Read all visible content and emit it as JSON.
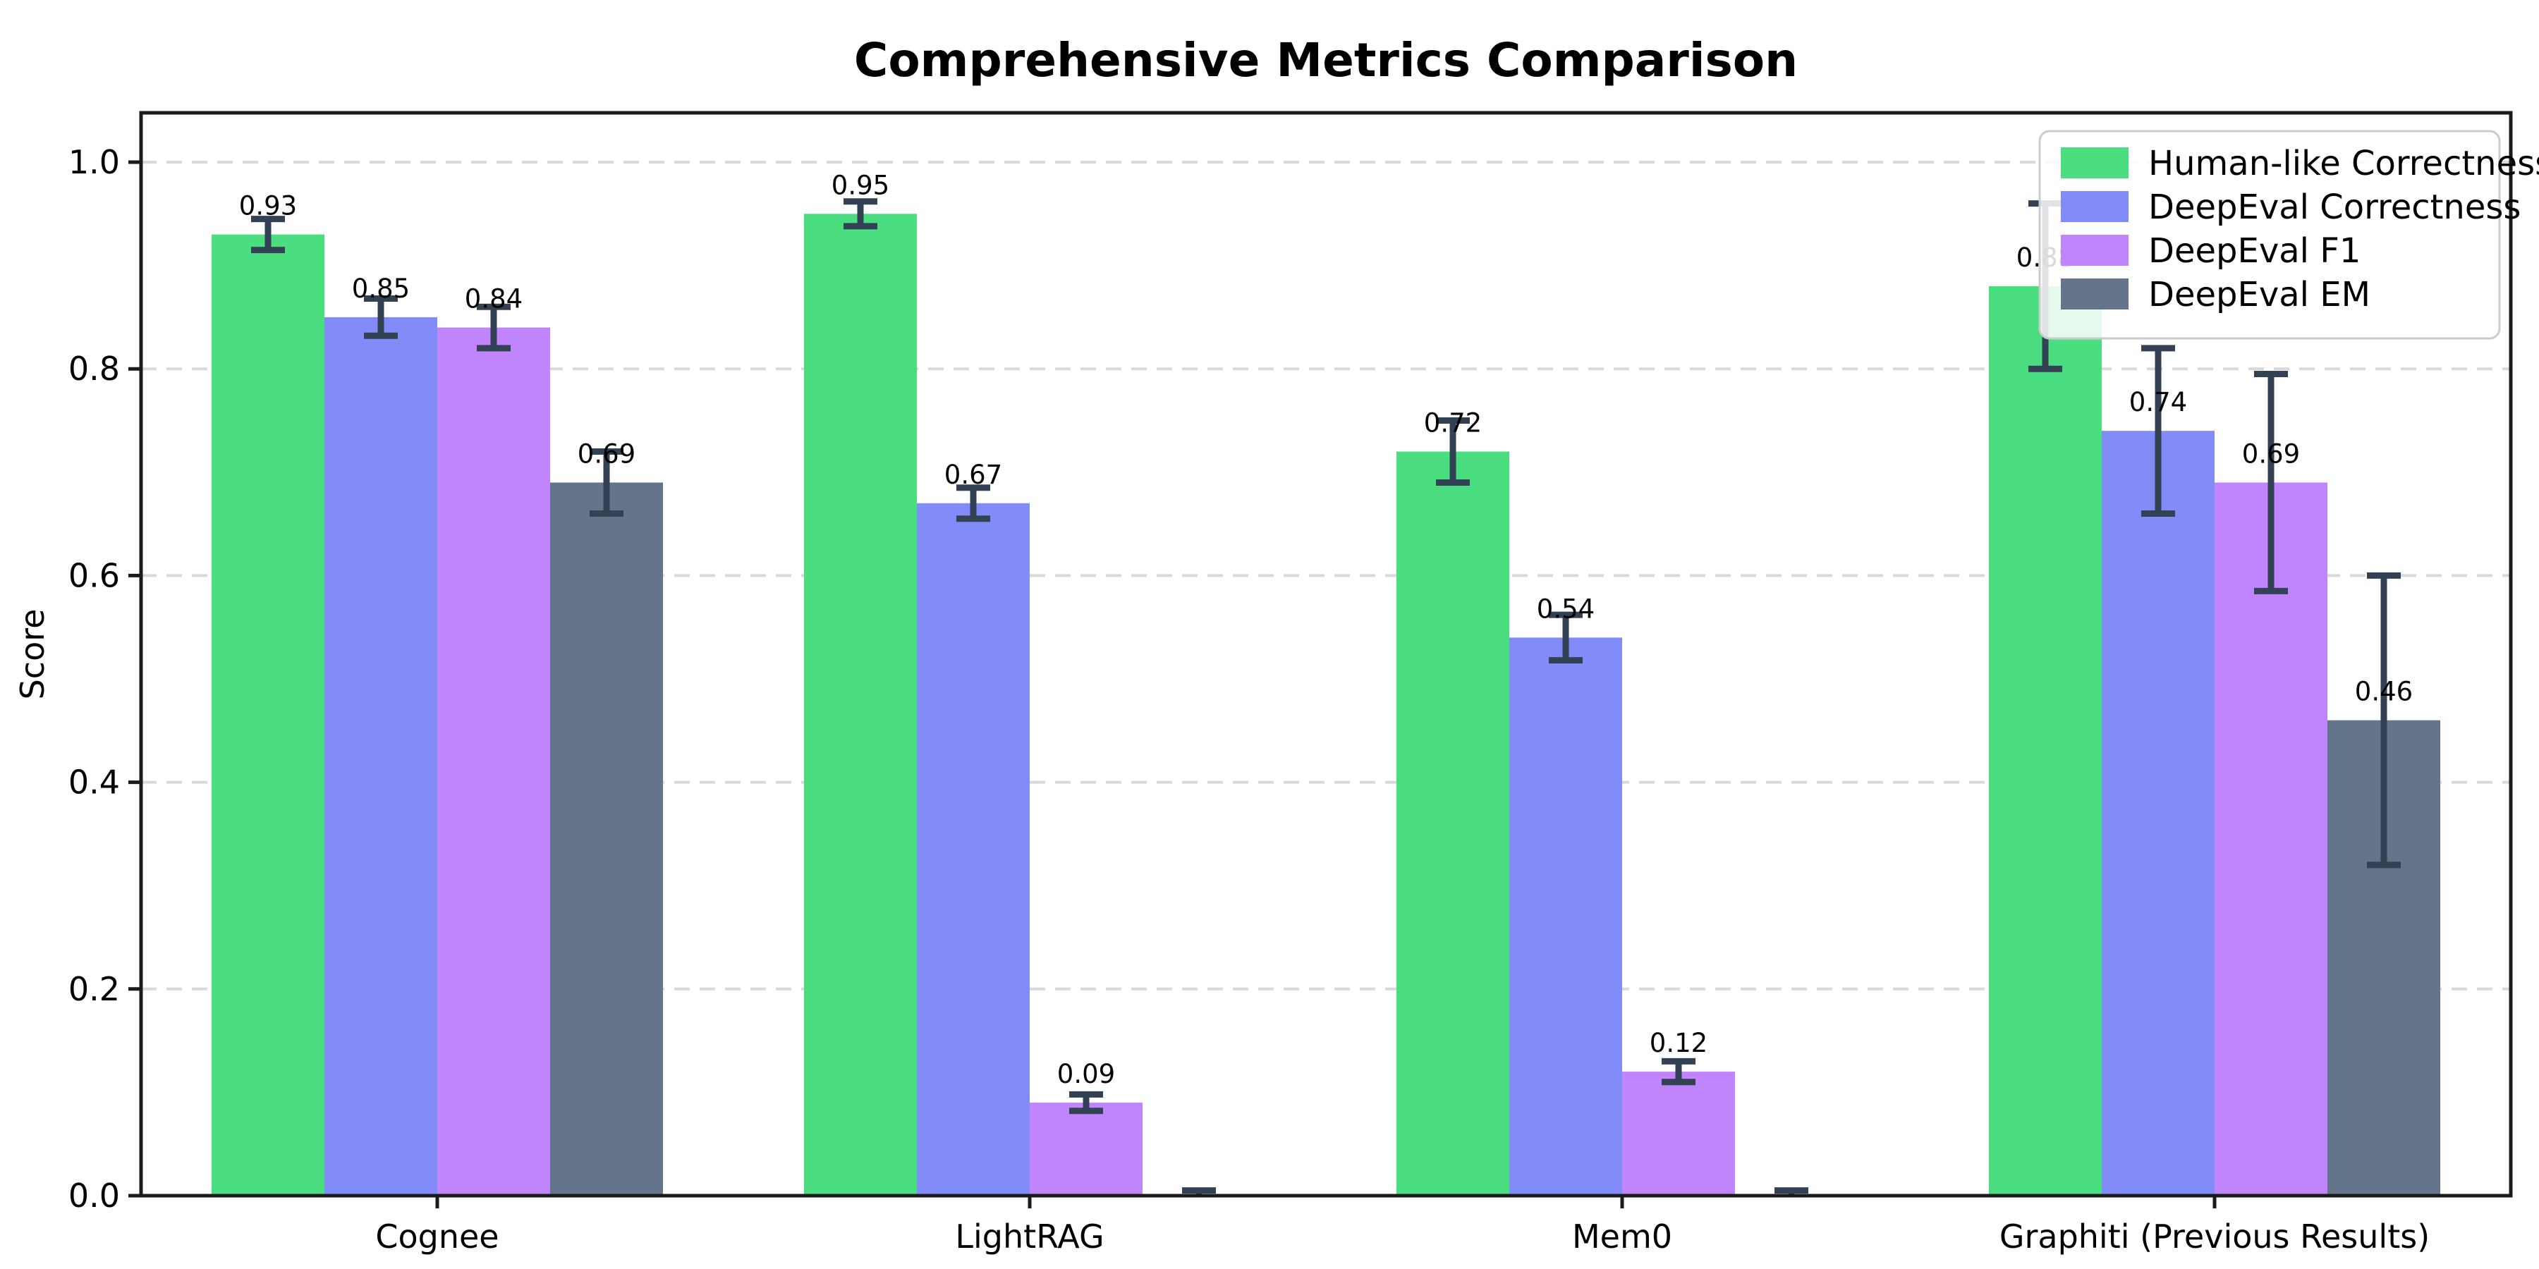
{
  "figure": {
    "title": "Comprehensive Metrics Comparison",
    "background_color": "#ffffff"
  },
  "style": {
    "axis_color": "#1a1a1a",
    "grid_color": "#d9d9d9",
    "error_bar_color": "#334155",
    "label_color": "#000000",
    "legend_border_color": "#cccccc",
    "legend_background": "rgba(255,255,255,0.85)"
  },
  "chart_data": {
    "type": "bar",
    "title": "Comprehensive Metrics Comparison",
    "xlabel": "",
    "ylabel": "Score",
    "ylim": [
      0.0,
      1.05
    ],
    "yticks": [
      0.0,
      0.2,
      0.4,
      0.6,
      0.8,
      1.0
    ],
    "grid": "horizontal-dashed",
    "legend_position": "upper-right",
    "error_bars": true,
    "categories": [
      "Cognee",
      "LightRAG",
      "Mem0",
      "Graphiti (Previous Results)"
    ],
    "series": [
      {
        "name": "Human-like Correctness",
        "color": "#4ade80",
        "values": [
          0.93,
          0.95,
          0.72,
          0.88
        ],
        "errors": [
          0.015,
          0.012,
          0.03,
          0.08
        ],
        "bar_labels": [
          "0.93",
          "0.95",
          "0.72",
          "0.88"
        ]
      },
      {
        "name": "DeepEval Correctness",
        "color": "#818cf8",
        "values": [
          0.85,
          0.67,
          0.54,
          0.74
        ],
        "errors": [
          0.018,
          0.015,
          0.022,
          0.08
        ],
        "bar_labels": [
          "0.85",
          "0.67",
          "0.54",
          "0.74"
        ]
      },
      {
        "name": "DeepEval F1",
        "color": "#c084fc",
        "values": [
          0.84,
          0.09,
          0.12,
          0.69
        ],
        "errors": [
          0.02,
          0.008,
          0.01,
          0.105
        ],
        "bar_labels": [
          "0.84",
          "0.09",
          "0.12",
          "0.69"
        ]
      },
      {
        "name": "DeepEval EM",
        "color": "#64748b",
        "values": [
          0.69,
          0.0,
          0.0,
          0.46
        ],
        "errors": [
          0.03,
          0.005,
          0.005,
          0.14
        ],
        "bar_labels": [
          "0.69",
          null,
          null,
          "0.46"
        ]
      }
    ]
  }
}
